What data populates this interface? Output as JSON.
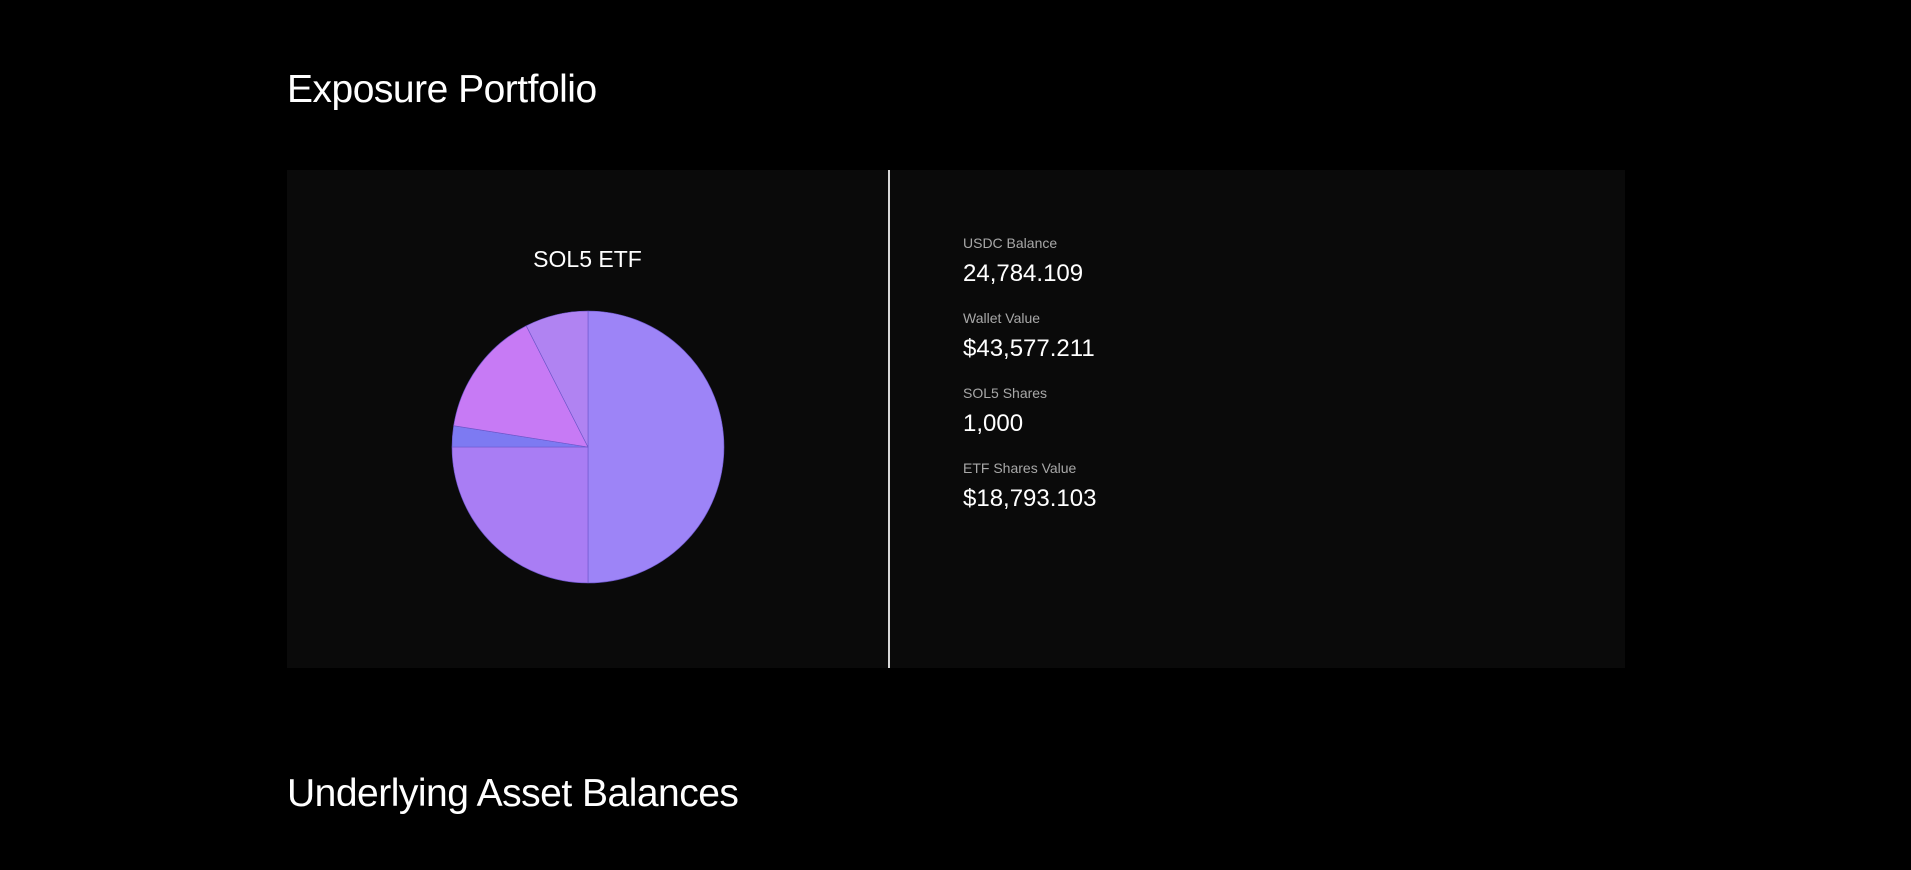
{
  "sections": {
    "exposure_title": "Exposure Portfolio",
    "underlying_title": "Underlying Asset Balances"
  },
  "stats": [
    {
      "label": "USDC Balance",
      "value": "24,784.109"
    },
    {
      "label": "Wallet Value",
      "value": "$43,577.211"
    },
    {
      "label": "SOL5 Shares",
      "value": "1,000"
    },
    {
      "label": "ETF Shares Value",
      "value": "$18,793.103"
    }
  ],
  "chart_data": {
    "type": "pie",
    "title": "SOL5 ETF",
    "start_angle_deg": 0,
    "direction": "clockwise",
    "slices": [
      {
        "value": 50.0,
        "color": "#9d84f7"
      },
      {
        "value": 25.0,
        "color": "#a97df4"
      },
      {
        "value": 2.5,
        "color": "#7d7af2"
      },
      {
        "value": 15.0,
        "color": "#c77af5"
      },
      {
        "value": 7.5,
        "color": "#b083f2"
      }
    ]
  }
}
